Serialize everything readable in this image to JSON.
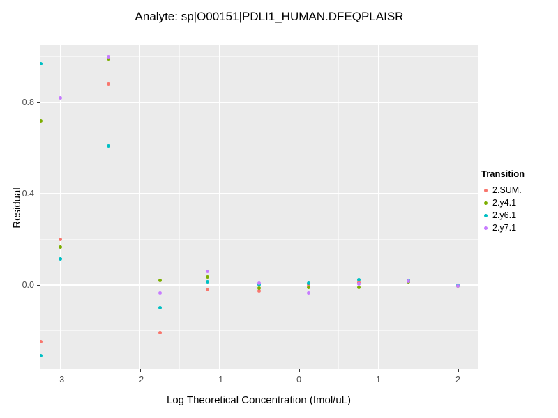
{
  "chart_data": {
    "type": "scatter",
    "title": "Analyte: sp|O00151|PDLI1_HUMAN.DFEQPLAISR",
    "xlabel": "Log Theoretical Concentration (fmol/uL)",
    "ylabel": "Residual",
    "xlim": [
      -3.26,
      2.25
    ],
    "ylim": [
      -0.37,
      1.05
    ],
    "x_ticks": [
      -3,
      -2,
      -1,
      0,
      1,
      2
    ],
    "x_tick_labels": [
      "-3",
      "-2",
      "-1",
      "0",
      "1",
      "2"
    ],
    "y_ticks": [
      0.0,
      0.4,
      0.8
    ],
    "y_tick_labels": [
      "0.0",
      "0.4",
      "0.8"
    ],
    "x_minor_ticks": [
      -2.5,
      -1.5,
      -0.5,
      0.5,
      1.5
    ],
    "y_minor_ticks": [
      -0.2,
      0.2,
      0.6,
      1.0
    ],
    "grid": true,
    "panel_background": "#EBEBEB",
    "legend_title": "Transition",
    "legend_position": "right",
    "series": [
      {
        "name": "2.SUM.",
        "color": "#F8766D",
        "points": [
          [
            -3.25,
            -0.25
          ],
          [
            -3.0,
            0.2
          ],
          [
            -2.4,
            0.88
          ],
          [
            -1.75,
            -0.21
          ],
          [
            -1.15,
            -0.02
          ],
          [
            -0.5,
            -0.025
          ],
          [
            0.12,
            0.0
          ],
          [
            0.75,
            0.01
          ],
          [
            1.38,
            0.015
          ],
          [
            2.0,
            -0.005
          ]
        ]
      },
      {
        "name": "2.y4.1",
        "color": "#7CAE00",
        "points": [
          [
            -3.25,
            0.72
          ],
          [
            -3.0,
            0.165
          ],
          [
            -2.4,
            0.99
          ],
          [
            -1.75,
            0.02
          ],
          [
            -1.15,
            0.035
          ],
          [
            -0.5,
            -0.015
          ],
          [
            0.12,
            -0.01
          ],
          [
            0.75,
            -0.012
          ],
          [
            1.38,
            0.012
          ],
          [
            2.0,
            -0.005
          ]
        ]
      },
      {
        "name": "2.y6.1",
        "color": "#00BFC4",
        "points": [
          [
            -3.25,
            0.97
          ],
          [
            -3.25,
            -0.31
          ],
          [
            -3.0,
            0.115
          ],
          [
            -2.4,
            0.61
          ],
          [
            -1.75,
            -0.1
          ],
          [
            -1.15,
            0.012
          ],
          [
            -0.5,
            0.0
          ],
          [
            0.12,
            0.006
          ],
          [
            0.75,
            0.022
          ],
          [
            1.38,
            0.02
          ],
          [
            2.0,
            -0.003
          ]
        ]
      },
      {
        "name": "2.y7.1",
        "color": "#C77CFF",
        "points": [
          [
            -3.0,
            0.82
          ],
          [
            -2.4,
            1.0
          ],
          [
            -1.75,
            -0.035
          ],
          [
            -1.15,
            0.06
          ],
          [
            -0.5,
            0.006
          ],
          [
            0.12,
            -0.035
          ],
          [
            0.75,
            0.004
          ],
          [
            1.38,
            0.016
          ],
          [
            2.0,
            -0.006
          ]
        ]
      }
    ]
  }
}
